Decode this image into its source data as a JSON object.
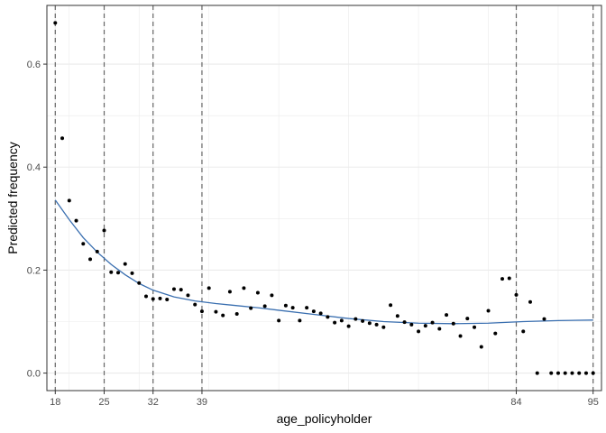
{
  "chart_data": {
    "type": "scatter",
    "xlabel": "age_policyholder",
    "ylabel": "Predicted frequency",
    "xlim": [
      16.8,
      96.2
    ],
    "ylim": [
      -0.034,
      0.714
    ],
    "x_breaks": [
      18,
      25,
      32,
      39,
      84,
      95
    ],
    "x_minor_grid": [
      20,
      30,
      40,
      50,
      60,
      70,
      80,
      90
    ],
    "x_major_grid": [
      18,
      25,
      32,
      39,
      84,
      95
    ],
    "y_breaks": [
      0.0,
      0.2,
      0.4,
      0.6
    ],
    "y_tick_labels": [
      "0.0",
      "0.2",
      "0.4",
      "0.6"
    ],
    "y_minor_grid": [
      0.1,
      0.3,
      0.5
    ],
    "vlines": [
      18,
      25,
      32,
      39,
      84,
      95
    ],
    "grid": true,
    "legend": "none",
    "points": {
      "x": [
        18,
        19,
        20,
        21,
        22,
        23,
        24,
        25,
        26,
        27,
        28,
        29,
        30,
        31,
        32,
        33,
        34,
        35,
        36,
        37,
        38,
        39,
        40,
        41,
        42,
        43,
        44,
        45,
        46,
        47,
        48,
        49,
        50,
        51,
        52,
        53,
        54,
        55,
        56,
        57,
        58,
        59,
        60,
        61,
        62,
        63,
        64,
        65,
        66,
        67,
        68,
        69,
        70,
        71,
        72,
        73,
        74,
        75,
        76,
        77,
        78,
        79,
        80,
        81,
        82,
        83,
        84,
        85,
        86,
        87,
        88,
        89,
        90,
        91,
        92,
        93,
        94,
        95
      ],
      "y": [
        0.68,
        0.456,
        0.335,
        0.296,
        0.251,
        0.221,
        0.236,
        0.277,
        0.196,
        0.195,
        0.212,
        0.194,
        0.175,
        0.149,
        0.144,
        0.145,
        0.143,
        0.163,
        0.162,
        0.151,
        0.133,
        0.12,
        0.165,
        0.119,
        0.112,
        0.158,
        0.115,
        0.165,
        0.126,
        0.156,
        0.13,
        0.151,
        0.102,
        0.131,
        0.127,
        0.102,
        0.127,
        0.12,
        0.116,
        0.109,
        0.098,
        0.102,
        0.091,
        0.105,
        0.101,
        0.097,
        0.094,
        0.089,
        0.132,
        0.111,
        0.099,
        0.094,
        0.081,
        0.092,
        0.098,
        0.086,
        0.113,
        0.096,
        0.072,
        0.106,
        0.089,
        0.051,
        0.121,
        0.077,
        0.183,
        0.184,
        0.152,
        0.081,
        0.138,
        0.0,
        0.105,
        0.0,
        0.0,
        0.0,
        0.0,
        0.0,
        0.0,
        0.0
      ]
    },
    "smooth": {
      "x": [
        18,
        20,
        22,
        24,
        26,
        28,
        30,
        32,
        35,
        38,
        41,
        44,
        47,
        50,
        55,
        60,
        65,
        70,
        75,
        80,
        85,
        90,
        95
      ],
      "y": [
        0.336,
        0.298,
        0.263,
        0.235,
        0.211,
        0.191,
        0.174,
        0.161,
        0.148,
        0.14,
        0.135,
        0.131,
        0.127,
        0.122,
        0.114,
        0.106,
        0.1,
        0.097,
        0.096,
        0.097,
        0.1,
        0.102,
        0.103
      ]
    },
    "colors": {
      "points": "#000000",
      "smooth": "#3a6fb0",
      "vlines": "#666666",
      "grid": "#ebebeb",
      "panel_border": "#333333",
      "tick_text": "#4d4d4d"
    }
  }
}
